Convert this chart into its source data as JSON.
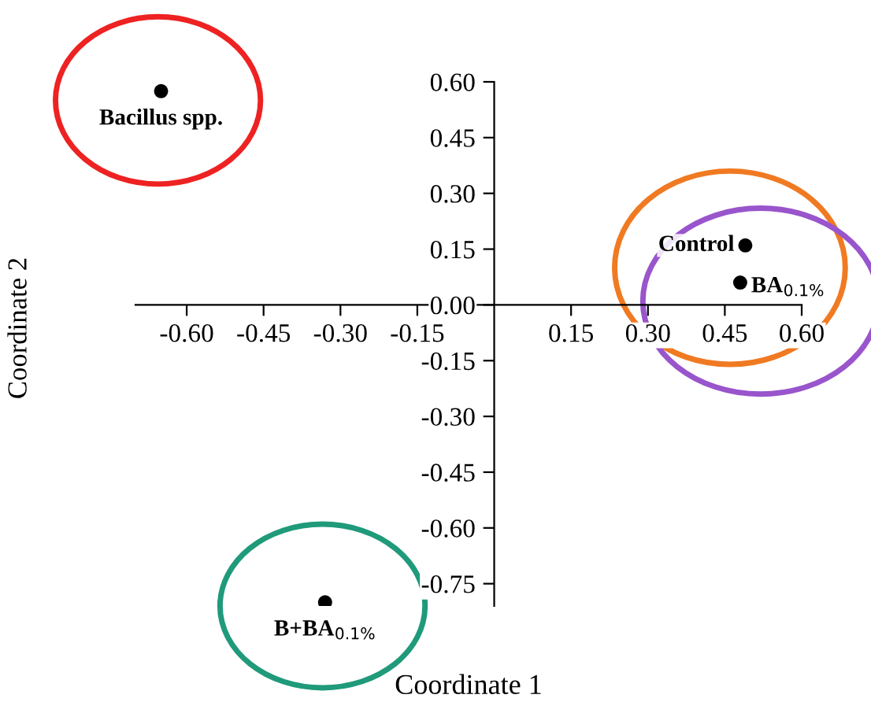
{
  "chart_data": {
    "type": "scatter",
    "xlabel": "Coordinate 1",
    "ylabel": "Coordinate 2",
    "x": [
      -0.65,
      0.49,
      0.48,
      -0.33
    ],
    "series": [
      {
        "color": "#000000",
        "values": [
          0.575,
          0.16,
          0.06,
          -0.8
        ]
      }
    ],
    "marker": "circle",
    "grid": false,
    "xlim": [
      -0.7,
      0.6
    ],
    "ylim": [
      -0.81,
      0.6
    ],
    "xticks": [
      {
        "value": -0.6,
        "label": "-0.60"
      },
      {
        "value": -0.45,
        "label": "-0.45"
      },
      {
        "value": -0.3,
        "label": "-0.30"
      },
      {
        "value": -0.15,
        "label": "-0.15"
      },
      {
        "value": 0.15,
        "label": "0.15"
      },
      {
        "value": 0.3,
        "label": "0.30"
      },
      {
        "value": 0.45,
        "label": "0.45"
      },
      {
        "value": 0.6,
        "label": "0.60"
      }
    ],
    "yticks": [
      {
        "value": -0.75,
        "label": "-0.75"
      },
      {
        "value": -0.6,
        "label": "-0.60"
      },
      {
        "value": -0.45,
        "label": "-0.45"
      },
      {
        "value": -0.3,
        "label": "-0.30"
      },
      {
        "value": -0.15,
        "label": "-0.15"
      },
      {
        "value": 0,
        "label": "0.00"
      },
      {
        "value": 0.15,
        "label": "0.15"
      },
      {
        "value": 0.3,
        "label": "0.30"
      },
      {
        "value": 0.45,
        "label": "0.45"
      },
      {
        "value": 0.6,
        "label": "0.60"
      }
    ],
    "annotations": [
      {
        "text": "Bacillus spp.",
        "x": -0.65,
        "y": 0.575
      },
      {
        "text": "Control",
        "x": 0.49,
        "y": 0.16
      },
      {
        "text": "BA$_{0.1%}$",
        "x": 0.48,
        "y": 0.06
      },
      {
        "text": "B+BA$_{0.1%}$",
        "x": -0.33,
        "y": -0.8
      }
    ]
  }
}
